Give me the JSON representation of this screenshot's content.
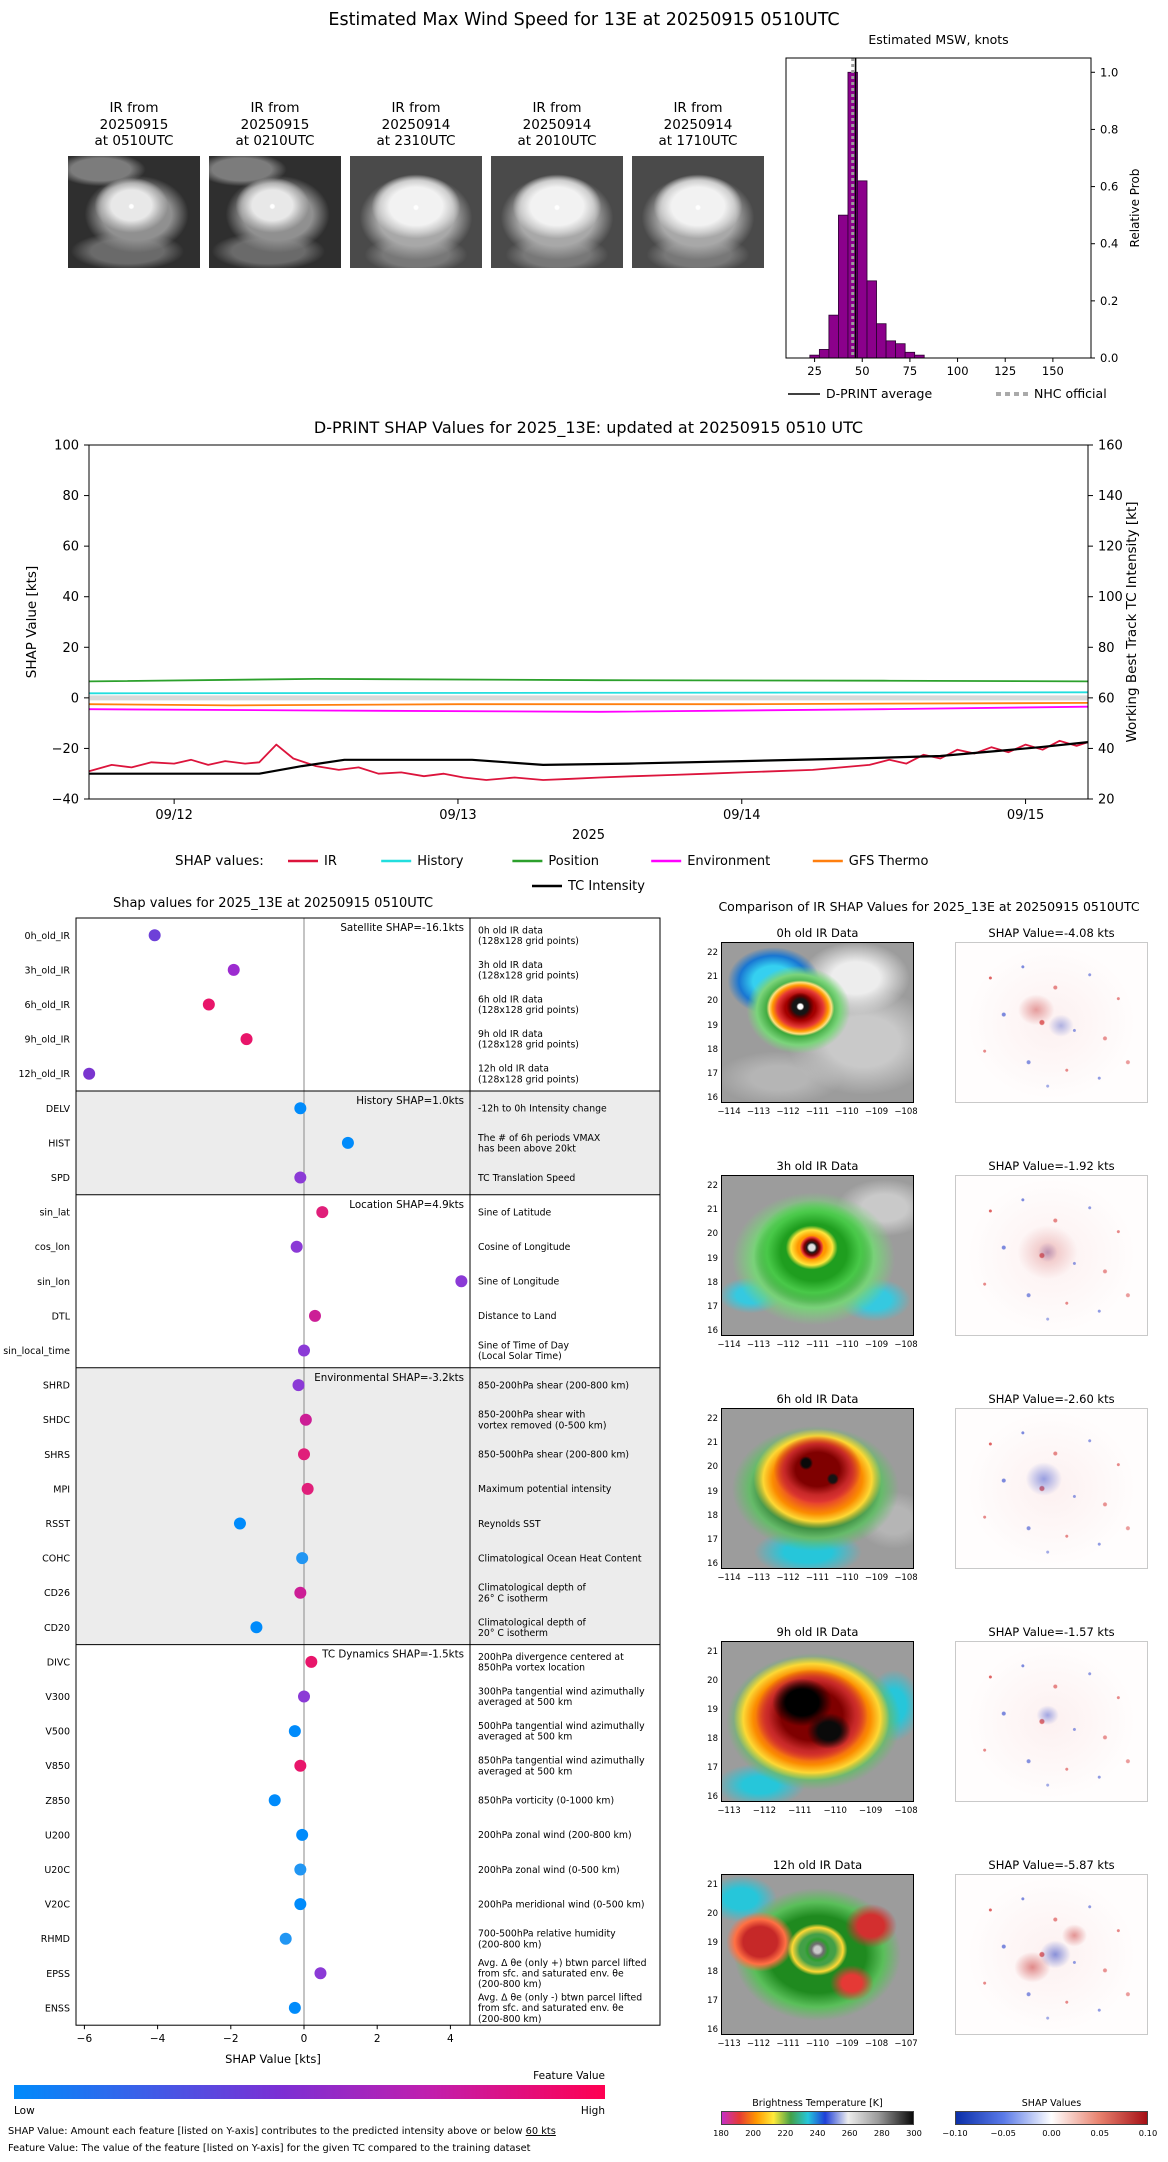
{
  "header": {
    "title": "Estimated Max Wind Speed for 13E at 20250915 0510UTC"
  },
  "colors": {
    "hist_bar": "#8b008b",
    "hist_edge": "#2a0030",
    "ir_line": "#dc143c",
    "history_line": "#22dede",
    "position_line": "#2ca02c",
    "environment_line": "#ff00ff",
    "gfs_line": "#ff7f0e",
    "intensity_line": "#000000",
    "zero_band": "#d9d9d9",
    "shaded_group": "#ececec"
  },
  "thumbnails": [
    {
      "lines": [
        "IR from",
        "20250915",
        "at 0510UTC"
      ]
    },
    {
      "lines": [
        "IR from",
        "20250915",
        "at 0210UTC"
      ]
    },
    {
      "lines": [
        "IR from",
        "20250914",
        "at 2310UTC"
      ]
    },
    {
      "lines": [
        "IR from",
        "20250914",
        "at 2010UTC"
      ]
    },
    {
      "lines": [
        "IR from",
        "20250914",
        "at 1710UTC"
      ]
    }
  ],
  "chart_data": [
    {
      "id": "msw_histogram",
      "type": "bar",
      "title": "Estimated MSW, knots",
      "ylabel": "Relative Prob",
      "xlim": [
        10,
        170
      ],
      "ylim": [
        0,
        1.05
      ],
      "xticks": [
        25,
        50,
        75,
        100,
        125,
        150
      ],
      "yticks": [
        0.0,
        0.2,
        0.4,
        0.6,
        0.8,
        1.0
      ],
      "bin_width": 5,
      "bin_centers": [
        25,
        30,
        35,
        40,
        45,
        50,
        55,
        60,
        65,
        70,
        75,
        80
      ],
      "values": [
        0.01,
        0.03,
        0.15,
        0.5,
        1.0,
        0.62,
        0.27,
        0.12,
        0.06,
        0.05,
        0.02,
        0.01
      ],
      "dprint_average": 46.5,
      "nhc_official": 45,
      "legend": [
        {
          "label": "D-PRINT average",
          "style": "solid-black"
        },
        {
          "label": "NHC official",
          "style": "dashed-gray"
        }
      ]
    },
    {
      "id": "shap_timeseries",
      "type": "line",
      "title": "D-PRINT SHAP Values for 2025_13E: updated at 20250915 0510 UTC",
      "ylabel_left": "SHAP Value [kts]",
      "ylabel_right": "Working Best Track TC Intensity [kt]",
      "xlabel": "2025",
      "xtick_labels": [
        "09/12",
        "09/13",
        "09/14",
        "09/15"
      ],
      "xlim_days": [
        -0.3,
        3.22
      ],
      "ylim_left": [
        -40,
        100
      ],
      "yticks_left": [
        -40,
        -20,
        0,
        20,
        40,
        60,
        80,
        100
      ],
      "yticks_right": [
        20,
        40,
        60,
        80,
        100,
        120,
        140,
        160
      ],
      "legend_label": "SHAP values:",
      "series": [
        {
          "name": "IR",
          "color": "#dc143c",
          "x": [
            -0.3,
            -0.22,
            -0.15,
            -0.08,
            0,
            0.06,
            0.12,
            0.18,
            0.25,
            0.3,
            0.36,
            0.42,
            0.5,
            0.58,
            0.65,
            0.72,
            0.8,
            0.88,
            0.95,
            1.02,
            1.1,
            1.2,
            1.3,
            1.4,
            1.5,
            1.62,
            1.75,
            1.88,
            2.0,
            2.12,
            2.25,
            2.35,
            2.45,
            2.52,
            2.58,
            2.64,
            2.7,
            2.76,
            2.82,
            2.88,
            2.94,
            3.0,
            3.06,
            3.12,
            3.18,
            3.22
          ],
          "y": [
            -29,
            -26.5,
            -27.5,
            -25.5,
            -26,
            -24.5,
            -26.5,
            -25,
            -26,
            -25.5,
            -18.5,
            -24,
            -27,
            -28.5,
            -27.5,
            -30,
            -29.5,
            -31,
            -30,
            -31.5,
            -32.5,
            -31.5,
            -32.5,
            -32,
            -31.5,
            -31,
            -30.5,
            -30,
            -29.5,
            -29,
            -28.5,
            -27.5,
            -26.5,
            -24.5,
            -26,
            -22.5,
            -24,
            -20.5,
            -22,
            -19.5,
            -21.5,
            -18.5,
            -20.5,
            -17,
            -19,
            -17.5
          ]
        },
        {
          "name": "History",
          "color": "#22dede",
          "x": [
            -0.3,
            3.22
          ],
          "y": [
            1.8,
            2.2
          ]
        },
        {
          "name": "Position",
          "color": "#2ca02c",
          "x": [
            -0.3,
            0.5,
            1.5,
            2.5,
            3.22
          ],
          "y": [
            6.5,
            7.5,
            7,
            6.8,
            6.5
          ]
        },
        {
          "name": "Environment",
          "color": "#ff00ff",
          "x": [
            -0.3,
            0.5,
            1.5,
            2.5,
            3.22
          ],
          "y": [
            -4.5,
            -5,
            -5.5,
            -4.5,
            -3.5
          ]
        },
        {
          "name": "GFS Thermo",
          "color": "#ff7f0e",
          "x": [
            -0.3,
            0.2,
            1.0,
            2.0,
            3.22
          ],
          "y": [
            -2.5,
            -3,
            -2.5,
            -2.5,
            -2
          ]
        },
        {
          "name": "TC Intensity",
          "color": "#000000",
          "x": [
            -0.3,
            0.3,
            0.45,
            0.6,
            1.05,
            1.3,
            1.6,
            2.0,
            2.4,
            2.7,
            2.9,
            3.05,
            3.22
          ],
          "y": [
            -30,
            -30,
            -27,
            -24.5,
            -24.5,
            -26.5,
            -26,
            -25,
            -24,
            -23,
            -21,
            -19.5,
            -17.5
          ]
        }
      ]
    },
    {
      "id": "shap_features",
      "type": "scatter",
      "title": "Shap values for 2025_13E at 20250915 0510UTC",
      "xlabel": "SHAP Value [kts]",
      "xticks": [
        -6,
        -4,
        -2,
        0,
        2,
        4
      ],
      "colorbar": {
        "title": "Feature Value",
        "low": "Low",
        "high": "High"
      },
      "groups": [
        {
          "header": "Satellite SHAP=-16.1kts",
          "shaded": false,
          "rows": [
            {
              "feature": "0h_old_IR",
              "value": -4.08,
              "color": "#6e40d8",
              "desc": "0h old IR data\n(128x128 grid points)"
            },
            {
              "feature": "3h_old_IR",
              "value": -1.92,
              "color": "#9c2bd0",
              "desc": "3h old IR data\n(128x128 grid points)"
            },
            {
              "feature": "6h_old_IR",
              "value": -2.6,
              "color": "#e8156a",
              "desc": "6h old IR data\n(128x128 grid points)"
            },
            {
              "feature": "9h_old_IR",
              "value": -1.57,
              "color": "#e8156a",
              "desc": "9h old IR data\n(128x128 grid points)"
            },
            {
              "feature": "12h_old_IR",
              "value": -5.87,
              "color": "#7a35cf",
              "desc": "12h old IR data\n(128x128 grid points)"
            }
          ]
        },
        {
          "header": "History SHAP=1.0kts",
          "shaded": true,
          "rows": [
            {
              "feature": "DELV",
              "value": -0.1,
              "color": "#008bfb",
              "desc": "-12h to 0h Intensity change"
            },
            {
              "feature": "HIST",
              "value": 1.2,
              "color": "#008bfb",
              "desc": "The # of 6h periods VMAX\nhas been above 20kt"
            },
            {
              "feature": "SPD",
              "value": -0.1,
              "color": "#8b3ad6",
              "desc": "TC Translation Speed"
            }
          ]
        },
        {
          "header": "Location SHAP=4.9kts",
          "shaded": false,
          "rows": [
            {
              "feature": "sin_lat",
              "value": 0.5,
              "color": "#e01f7a",
              "desc": "Sine of Latitude"
            },
            {
              "feature": "cos_lon",
              "value": -0.2,
              "color": "#8b3ad6",
              "desc": "Cosine of Longitude"
            },
            {
              "feature": "sin_lon",
              "value": 4.3,
              "color": "#8b3ad6",
              "desc": "Sine of Longitude"
            },
            {
              "feature": "DTL",
              "value": 0.3,
              "color": "#cc1e96",
              "desc": "Distance to Land"
            },
            {
              "feature": "sin_local_time",
              "value": 0.0,
              "color": "#8b3ad6",
              "desc": "Sine of Time of Day\n(Local Solar Time)"
            }
          ]
        },
        {
          "header": "Environmental SHAP=-3.2kts",
          "shaded": true,
          "rows": [
            {
              "feature": "SHRD",
              "value": -0.15,
              "color": "#8b3ad6",
              "desc": "850-200hPa shear (200-800 km)"
            },
            {
              "feature": "SHDC",
              "value": 0.05,
              "color": "#cc1e96",
              "desc": "850-200hPa shear with\nvortex removed (0-500 km)"
            },
            {
              "feature": "SHRS",
              "value": 0.0,
              "color": "#e01f7a",
              "desc": "850-500hPa shear (200-800 km)"
            },
            {
              "feature": "MPI",
              "value": 0.1,
              "color": "#e01f7a",
              "desc": "Maximum potential intensity"
            },
            {
              "feature": "RSST",
              "value": -1.75,
              "color": "#008bfb",
              "desc": "Reynolds SST"
            },
            {
              "feature": "COHC",
              "value": -0.05,
              "color": "#2196f3",
              "desc": "Climatological Ocean Heat Content"
            },
            {
              "feature": "CD26",
              "value": -0.1,
              "color": "#cc1e96",
              "desc": "Climatological depth of\n26° C isotherm"
            },
            {
              "feature": "CD20",
              "value": -1.3,
              "color": "#008bfb",
              "desc": "Climatological depth of\n20° C isotherm"
            }
          ]
        },
        {
          "header": "TC Dynamics SHAP=-1.5kts",
          "shaded": false,
          "rows": [
            {
              "feature": "DIVC",
              "value": 0.2,
              "color": "#e8156a",
              "desc": "200hPa divergence centered at\n850hPa vortex location"
            },
            {
              "feature": "V300",
              "value": 0.0,
              "color": "#8b3ad6",
              "desc": "300hPa tangential wind azimuthally\naveraged at 500 km"
            },
            {
              "feature": "V500",
              "value": -0.25,
              "color": "#008bfb",
              "desc": "500hPa tangential wind azimuthally\naveraged at 500 km"
            },
            {
              "feature": "V850",
              "value": -0.1,
              "color": "#e8156a",
              "desc": "850hPa tangential wind azimuthally\naveraged at 500 km"
            },
            {
              "feature": "Z850",
              "value": -0.8,
              "color": "#008bfb",
              "desc": "850hPa vorticity (0-1000 km)"
            },
            {
              "feature": "U200",
              "value": -0.05,
              "color": "#008bfb",
              "desc": "200hPa zonal wind (200-800 km)"
            },
            {
              "feature": "U20C",
              "value": -0.1,
              "color": "#2196f3",
              "desc": "200hPa zonal wind (0-500 km)"
            },
            {
              "feature": "V20C",
              "value": -0.1,
              "color": "#008bfb",
              "desc": "200hPa meridional wind (0-500 km)"
            },
            {
              "feature": "RHMD",
              "value": -0.5,
              "color": "#2196f3",
              "desc": "700-500hPa relative humidity\n(200-800 km)"
            },
            {
              "feature": "EPSS",
              "value": 0.45,
              "color": "#8b3ad6",
              "desc": "Avg. Δ θe (only +) btwn parcel lifted\nfrom sfc. and saturated env. θe\n(200-800 km)"
            },
            {
              "feature": "ENSS",
              "value": -0.25,
              "color": "#008bfb",
              "desc": "Avg. Δ θe (only -) btwn parcel lifted\nfrom sfc. and saturated env. θe\n(200-800 km)"
            }
          ]
        }
      ]
    }
  ],
  "comparison": {
    "title": "Comparison of IR SHAP Values for 2025_13E at 20250915 0510UTC",
    "rows": [
      {
        "ir_title": "0h old IR Data",
        "shap_title": "SHAP Value=-4.08 kts",
        "yticks": [
          22,
          21,
          20,
          19,
          18,
          17,
          16
        ],
        "xticks": [
          -114,
          -113,
          -112,
          -111,
          -110,
          -109,
          -108
        ]
      },
      {
        "ir_title": "3h old IR Data",
        "shap_title": "SHAP Value=-1.92 kts",
        "yticks": [
          22,
          21,
          20,
          19,
          18,
          17,
          16
        ],
        "xticks": [
          -114,
          -113,
          -112,
          -111,
          -110,
          -109,
          -108
        ]
      },
      {
        "ir_title": "6h old IR Data",
        "shap_title": "SHAP Value=-2.60 kts",
        "yticks": [
          22,
          21,
          20,
          19,
          18,
          17,
          16
        ],
        "xticks": [
          -114,
          -113,
          -112,
          -111,
          -110,
          -109,
          -108
        ]
      },
      {
        "ir_title": "9h old IR Data",
        "shap_title": "SHAP Value=-1.57 kts",
        "yticks": [
          21,
          20,
          19,
          18,
          17,
          16
        ],
        "xticks": [
          -113,
          -112,
          -111,
          -110,
          -109,
          -108
        ]
      },
      {
        "ir_title": "12h old IR Data",
        "shap_title": "SHAP Value=-5.87 kts",
        "yticks": [
          21,
          20,
          19,
          18,
          17,
          16
        ],
        "xticks": [
          -113,
          -112,
          -111,
          -110,
          -109,
          -108,
          -107
        ]
      }
    ],
    "bt_colorbar": {
      "title": "Brightness Temperature [K]",
      "ticks": [
        180,
        200,
        220,
        240,
        260,
        280,
        300
      ]
    },
    "shap_colorbar": {
      "title": "SHAP Values",
      "ticks": [
        "-0.10",
        "-0.05",
        "0.00",
        "0.05",
        "0.10"
      ]
    }
  },
  "footnotes": [
    {
      "prefix": "SHAP Value: Amount each feature [listed on Y-axis] contributes to the predicted intensity above or below ",
      "underlined": "60 kts"
    },
    {
      "prefix": "Feature Value: The value of the feature [listed on Y-axis] for the given TC compared to the training dataset",
      "underlined": ""
    }
  ]
}
